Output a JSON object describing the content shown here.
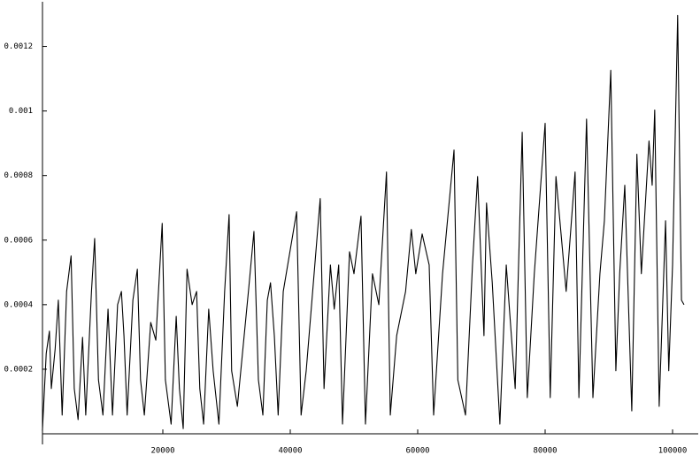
{
  "chart_data": {
    "type": "line",
    "x": [
      1100,
      1700,
      2200,
      2500,
      3100,
      3600,
      4200,
      4900,
      5600,
      6100,
      6700,
      7400,
      7900,
      8800,
      9300,
      9900,
      10600,
      11400,
      12100,
      12900,
      13500,
      13900,
      14400,
      15300,
      16000,
      16500,
      17100,
      18100,
      18900,
      19900,
      20400,
      21300,
      22100,
      22600,
      23200,
      23800,
      24600,
      25300,
      25800,
      26400,
      27200,
      27900,
      28800,
      29700,
      30400,
      30800,
      31700,
      33500,
      34300,
      35000,
      35700,
      36400,
      36900,
      37500,
      38100,
      38900,
      41000,
      41700,
      42500,
      43800,
      44700,
      45300,
      46300,
      46900,
      47600,
      48200,
      49300,
      50000,
      51100,
      51800,
      52900,
      53900,
      55100,
      55700,
      56700,
      58100,
      59000,
      59700,
      60700,
      61800,
      62500,
      63900,
      65700,
      66300,
      67500,
      68600,
      69400,
      70400,
      70800,
      71700,
      72900,
      73900,
      75300,
      76400,
      77200,
      78300,
      80000,
      80800,
      81700,
      83300,
      84700,
      85300,
      86100,
      86500,
      87500,
      88600,
      89300,
      90300,
      91100,
      91700,
      92500,
      93600,
      94400,
      95100,
      96300,
      96800,
      97200,
      97900,
      98900,
      99400,
      100000,
      100800,
      101400,
      101800
    ],
    "series": [
      {
        "color": "#000000",
        "values": [
          1e-05,
          0.000249,
          0.000318,
          0.00014,
          0.000263,
          0.000414,
          5.8e-05,
          0.000441,
          0.000551,
          0.00014,
          4.4e-05,
          0.000299,
          5.8e-05,
          0.000441,
          0.000605,
          0.000167,
          5.8e-05,
          0.000386,
          5.8e-05,
          0.0004,
          0.000441,
          0.000304,
          5.8e-05,
          0.000414,
          0.00051,
          0.000167,
          5.8e-05,
          0.000345,
          0.00029,
          0.000652,
          0.000167,
          3e-05,
          0.000364,
          0.00014,
          1.6e-05,
          0.00051,
          0.0004,
          0.000441,
          0.00014,
          3e-05,
          0.000386,
          0.000195,
          3e-05,
          0.000441,
          0.000679,
          0.000195,
          8.5e-05,
          0.000455,
          0.000627,
          0.000167,
          5.8e-05,
          0.000414,
          0.000468,
          0.000304,
          5.8e-05,
          0.000441,
          0.000688,
          5.8e-05,
          0.000195,
          0.00051,
          0.000729,
          0.00014,
          0.000523,
          0.000386,
          0.000523,
          3e-05,
          0.000564,
          0.000496,
          0.000674,
          3e-05,
          0.000496,
          0.0004,
          0.000811,
          5.8e-05,
          0.000304,
          0.000441,
          0.000633,
          0.000496,
          0.000619,
          0.000523,
          5.8e-05,
          0.000496,
          0.000879,
          0.000167,
          5.8e-05,
          0.000523,
          0.000797,
          0.000304,
          0.000715,
          0.000468,
          3e-05,
          0.000523,
          0.00014,
          0.000934,
          0.000112,
          0.000496,
          0.000962,
          0.000112,
          0.000797,
          0.000441,
          0.000811,
          0.000112,
          0.000688,
          0.000975,
          0.000112,
          0.000496,
          0.00066,
          0.001126,
          0.000195,
          0.000496,
          0.00077,
          7.1e-05,
          0.000866,
          0.000496,
          0.000907,
          0.00077,
          0.001003,
          8.5e-05,
          0.00066,
          0.000195,
          0.000523,
          0.001296,
          0.000414,
          0.0004
        ]
      }
    ],
    "xlim": [
      0,
      104000
    ],
    "ylim": [
      0,
      0.0013
    ],
    "xticks": [
      20000,
      40000,
      60000,
      80000,
      100000
    ],
    "yticks": [
      0.0002,
      0.0004,
      0.0006,
      0.0008,
      0.001,
      0.0012
    ]
  }
}
